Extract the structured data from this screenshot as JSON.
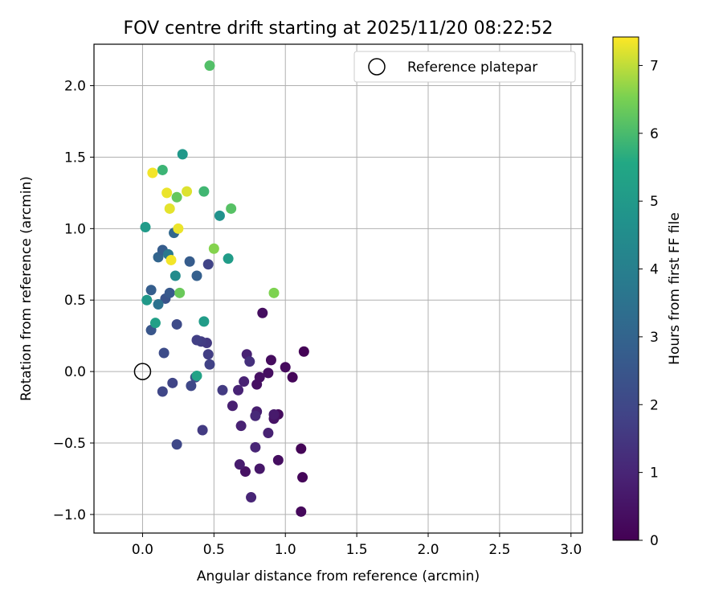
{
  "chart_data": {
    "type": "scatter",
    "title": "FOV centre drift starting at 2025/11/20 08:22:52",
    "xlabel": "Angular distance from reference (arcmin)",
    "ylabel": "Rotation from reference (arcmin)",
    "xlim": [
      -0.34,
      3.08
    ],
    "ylim": [
      -1.13,
      2.29
    ],
    "xticks": [
      0.0,
      0.5,
      1.0,
      1.5,
      2.0,
      2.5,
      3.0
    ],
    "xtick_labels": [
      "0.0",
      "0.5",
      "1.0",
      "1.5",
      "2.0",
      "2.5",
      "3.0"
    ],
    "yticks": [
      -1.0,
      -0.5,
      0.0,
      0.5,
      1.0,
      1.5,
      2.0
    ],
    "ytick_labels": [
      "−1.0",
      "−0.5",
      "0.0",
      "0.5",
      "1.0",
      "1.5",
      "2.0"
    ],
    "grid": true,
    "legend": {
      "position": "top-right",
      "entries": [
        "Reference platepar"
      ]
    },
    "reference_point": {
      "x": 0.0,
      "y": 0.0,
      "marker": "open-circle"
    },
    "colorbar": {
      "label": "Hours from first FF file",
      "range": [
        0,
        7.42
      ],
      "ticks": [
        0,
        1,
        2,
        3,
        4,
        5,
        6,
        7
      ],
      "tick_labels": [
        "0",
        "1",
        "2",
        "3",
        "4",
        "5",
        "6",
        "7"
      ],
      "colormap": "viridis"
    },
    "points": [
      {
        "x": 1.13,
        "y": 0.14,
        "c": 0.05
      },
      {
        "x": 1.11,
        "y": -0.54,
        "c": 0.1
      },
      {
        "x": 1.12,
        "y": -0.74,
        "c": 0.15
      },
      {
        "x": 1.11,
        "y": -0.98,
        "c": 0.2
      },
      {
        "x": 1.05,
        "y": -0.04,
        "c": 0.15
      },
      {
        "x": 1.0,
        "y": 0.03,
        "c": 0.25
      },
      {
        "x": 0.95,
        "y": -0.3,
        "c": 0.3
      },
      {
        "x": 0.95,
        "y": -0.62,
        "c": 0.35
      },
      {
        "x": 0.9,
        "y": 0.08,
        "c": 0.3
      },
      {
        "x": 0.88,
        "y": -0.01,
        "c": 0.35
      },
      {
        "x": 0.84,
        "y": 0.41,
        "c": 0.35
      },
      {
        "x": 0.82,
        "y": -0.04,
        "c": 0.4
      },
      {
        "x": 0.8,
        "y": -0.09,
        "c": 0.4
      },
      {
        "x": 0.92,
        "y": -0.33,
        "c": 0.5
      },
      {
        "x": 0.92,
        "y": -0.3,
        "c": 0.7
      },
      {
        "x": 0.88,
        "y": -0.43,
        "c": 0.9
      },
      {
        "x": 0.8,
        "y": -0.28,
        "c": 0.8
      },
      {
        "x": 0.79,
        "y": -0.31,
        "c": 1.1
      },
      {
        "x": 0.79,
        "y": -0.53,
        "c": 1.0
      },
      {
        "x": 0.82,
        "y": -0.68,
        "c": 0.6
      },
      {
        "x": 0.72,
        "y": -0.7,
        "c": 0.45
      },
      {
        "x": 0.68,
        "y": -0.65,
        "c": 0.75
      },
      {
        "x": 0.76,
        "y": -0.88,
        "c": 1.0
      },
      {
        "x": 0.69,
        "y": -0.38,
        "c": 0.9
      },
      {
        "x": 0.63,
        "y": -0.24,
        "c": 0.85
      },
      {
        "x": 0.67,
        "y": -0.13,
        "c": 0.95
      },
      {
        "x": 0.71,
        "y": -0.07,
        "c": 0.9
      },
      {
        "x": 0.73,
        "y": 0.12,
        "c": 0.9
      },
      {
        "x": 0.75,
        "y": 0.07,
        "c": 1.3
      },
      {
        "x": 0.56,
        "y": -0.13,
        "c": 1.6
      },
      {
        "x": 0.47,
        "y": 0.05,
        "c": 1.8
      },
      {
        "x": 0.46,
        "y": 0.12,
        "c": 1.7
      },
      {
        "x": 0.45,
        "y": 0.2,
        "c": 1.55
      },
      {
        "x": 0.41,
        "y": 0.21,
        "c": 1.65
      },
      {
        "x": 0.38,
        "y": 0.22,
        "c": 1.75
      },
      {
        "x": 0.37,
        "y": -0.04,
        "c": 2.2
      },
      {
        "x": 0.34,
        "y": -0.1,
        "c": 2.0
      },
      {
        "x": 0.42,
        "y": -0.41,
        "c": 1.6
      },
      {
        "x": 0.24,
        "y": -0.51,
        "c": 2.0
      },
      {
        "x": 0.21,
        "y": -0.08,
        "c": 1.9
      },
      {
        "x": 0.14,
        "y": -0.14,
        "c": 1.95
      },
      {
        "x": 0.15,
        "y": 0.13,
        "c": 2.15
      },
      {
        "x": 0.24,
        "y": 0.33,
        "c": 2.1
      },
      {
        "x": 0.06,
        "y": 0.29,
        "c": 2.5
      },
      {
        "x": 0.06,
        "y": 0.57,
        "c": 2.8
      },
      {
        "x": 0.16,
        "y": 0.51,
        "c": 2.4
      },
      {
        "x": 0.19,
        "y": 0.55,
        "c": 2.6
      },
      {
        "x": 0.11,
        "y": 0.47,
        "c": 3.5
      },
      {
        "x": 0.33,
        "y": 0.77,
        "c": 2.7
      },
      {
        "x": 0.38,
        "y": 0.67,
        "c": 2.85
      },
      {
        "x": 0.46,
        "y": 0.75,
        "c": 1.85
      },
      {
        "x": 0.11,
        "y": 0.8,
        "c": 3.05
      },
      {
        "x": 0.14,
        "y": 0.85,
        "c": 2.75
      },
      {
        "x": 0.18,
        "y": 0.82,
        "c": 3.7
      },
      {
        "x": 0.22,
        "y": 0.97,
        "c": 3.1
      },
      {
        "x": 0.23,
        "y": 0.67,
        "c": 4.5
      },
      {
        "x": 0.03,
        "y": 0.5,
        "c": 5.0
      },
      {
        "x": 0.09,
        "y": 0.34,
        "c": 5.25
      },
      {
        "x": 0.02,
        "y": 1.01,
        "c": 5.05
      },
      {
        "x": 0.38,
        "y": -0.03,
        "c": 5.35
      },
      {
        "x": 0.43,
        "y": 0.35,
        "c": 5.1
      },
      {
        "x": 0.54,
        "y": 1.09,
        "c": 4.7
      },
      {
        "x": 0.6,
        "y": 0.79,
        "c": 5.1
      },
      {
        "x": 0.28,
        "y": 1.52,
        "c": 4.95
      },
      {
        "x": 0.14,
        "y": 1.41,
        "c": 5.85
      },
      {
        "x": 0.43,
        "y": 1.26,
        "c": 5.9
      },
      {
        "x": 0.62,
        "y": 1.14,
        "c": 6.15
      },
      {
        "x": 0.47,
        "y": 2.14,
        "c": 6.1
      },
      {
        "x": 0.24,
        "y": 1.22,
        "c": 6.3
      },
      {
        "x": 0.26,
        "y": 0.55,
        "c": 6.35
      },
      {
        "x": 0.5,
        "y": 0.86,
        "c": 6.6
      },
      {
        "x": 0.92,
        "y": 0.55,
        "c": 6.55
      },
      {
        "x": 0.07,
        "y": 1.39,
        "c": 7.35
      },
      {
        "x": 0.17,
        "y": 1.25,
        "c": 7.3
      },
      {
        "x": 0.31,
        "y": 1.26,
        "c": 7.2
      },
      {
        "x": 0.19,
        "y": 1.14,
        "c": 7.25
      },
      {
        "x": 0.25,
        "y": 1.0,
        "c": 7.3
      },
      {
        "x": 0.2,
        "y": 0.78,
        "c": 7.35
      }
    ]
  }
}
